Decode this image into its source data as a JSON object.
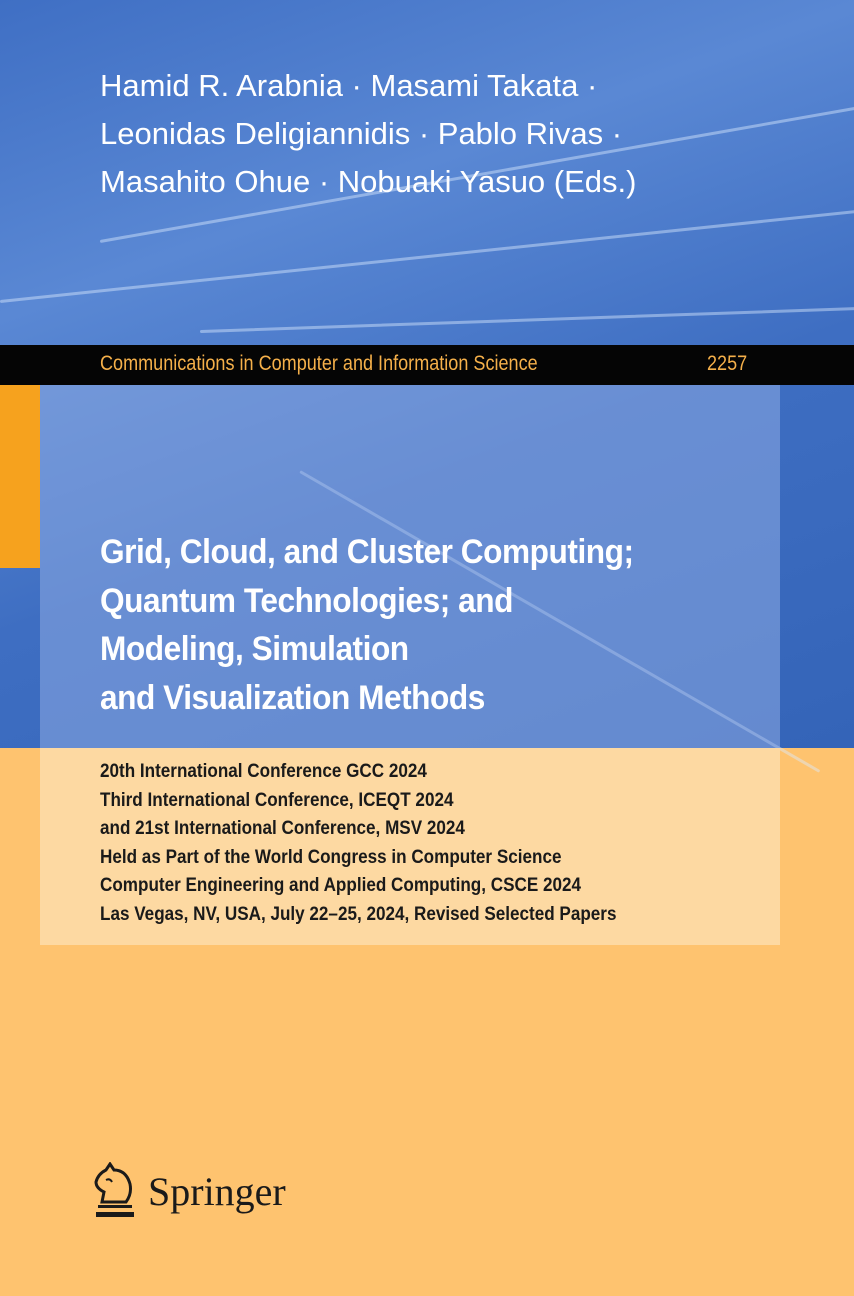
{
  "authors": {
    "lines": [
      "Hamid R. Arabnia · Masami Takata ·",
      "Leonidas Deligiannidis · Pablo Rivas ·",
      "Masahito Ohue · Nobuaki Yasuo (Eds.)"
    ]
  },
  "series": {
    "name": "Communications in Computer and Information Science",
    "volume": "2257"
  },
  "title": {
    "lines": [
      "Grid, Cloud, and Cluster Computing;",
      "Quantum Technologies; and",
      "Modeling, Simulation",
      "and Visualization Methods"
    ]
  },
  "subtitle": {
    "lines": [
      "20th International Conference GCC 2024",
      "Third International Conference, ICEQT 2024",
      "and 21st International Conference, MSV 2024",
      "Held as Part of the World Congress in Computer Science",
      "Computer Engineering and Applied Computing, CSCE 2024",
      "Las Vegas, NV, USA, July 22–25, 2024, Revised Selected Papers"
    ]
  },
  "publisher": {
    "name": "Springer",
    "icon": "knight-chess-piece-icon"
  },
  "colors": {
    "blue": "#3f6fc4",
    "orange": "#fec36f",
    "accent": "#f6a21e",
    "band": "#050505",
    "series_text": "#f5b04a"
  }
}
